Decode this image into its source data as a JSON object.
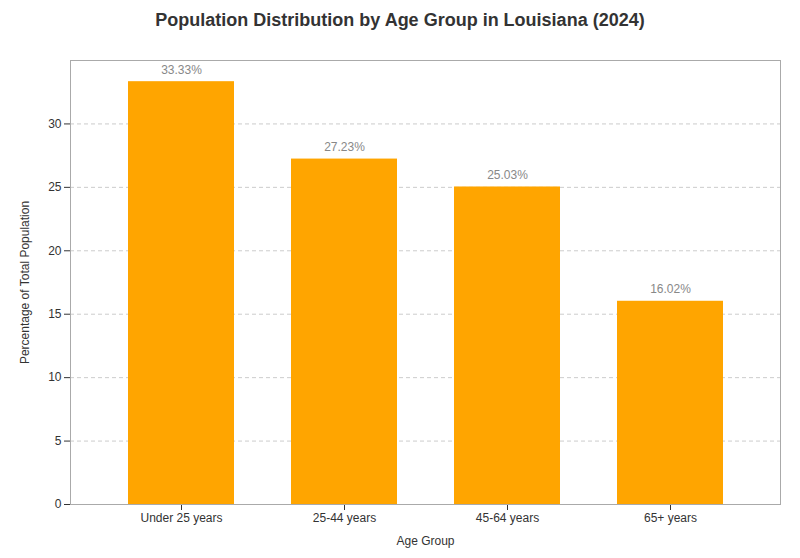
{
  "chart_data": {
    "type": "bar",
    "title": "Population Distribution by Age Group in Louisiana (2024)",
    "xlabel": "Age Group",
    "ylabel": "Percentage of Total Population",
    "categories": [
      "Under 25 years",
      "25-44 years",
      "45-64 years",
      "65+ years"
    ],
    "values": [
      33.33,
      27.23,
      25.03,
      16.02
    ],
    "value_labels": [
      "33.33%",
      "27.23%",
      "25.03%",
      "16.02%"
    ],
    "data_labels": true,
    "color": "#FFA500",
    "ylim": [
      0,
      35
    ],
    "yticks": [
      0,
      5,
      10,
      15,
      20,
      25,
      30
    ],
    "grid": true
  }
}
